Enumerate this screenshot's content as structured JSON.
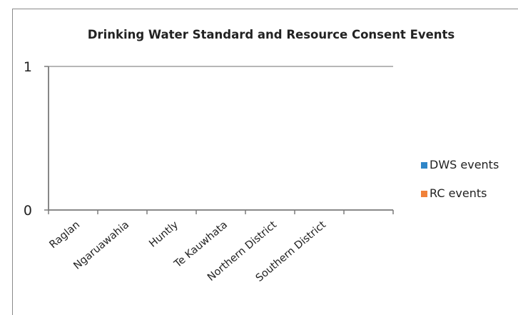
{
  "chart_data": {
    "type": "bar",
    "title": "Drinking Water Standard and Resource Consent Events",
    "categories": [
      "Raglan",
      "Ngaruawahia",
      "Huntly",
      "Te Kauwhata",
      "Northern District",
      "Southern District"
    ],
    "series": [
      {
        "name": "DWS events",
        "values": [
          0,
          0,
          0,
          0,
          0,
          0
        ],
        "color": "#2f86c8"
      },
      {
        "name": "RC events",
        "values": [
          0,
          0,
          0,
          0,
          0,
          0
        ],
        "color": "#f0813a"
      }
    ],
    "yticks": [
      0,
      1
    ],
    "ylim": [
      0,
      1
    ],
    "grid": true,
    "legend_position": "right"
  }
}
